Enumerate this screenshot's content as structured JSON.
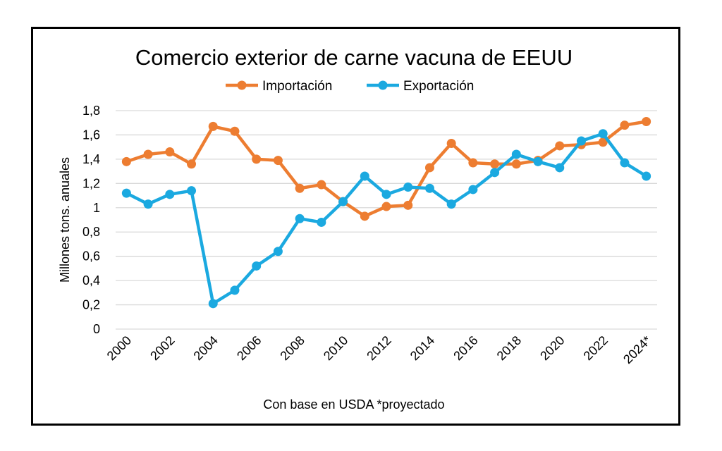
{
  "chart_data": {
    "type": "line",
    "title": "Comercio exterior de carne vacuna de EEUU",
    "xlabel": "",
    "ylabel": "Millones tons. anuales",
    "footer": "Con base en USDA *proyectado",
    "legend_position": "top-center",
    "grid": true,
    "ylim": [
      0,
      1.8
    ],
    "y_ticks": [
      "0",
      "0,2",
      "0,4",
      "0,6",
      "0,8",
      "1",
      "1,2",
      "1,4",
      "1,6",
      "1,8"
    ],
    "y_tick_values": [
      0,
      0.2,
      0.4,
      0.6,
      0.8,
      1.0,
      1.2,
      1.4,
      1.6,
      1.8
    ],
    "x": [
      "2000",
      "2001",
      "2002",
      "2003",
      "2004",
      "2005",
      "2006",
      "2007",
      "2008",
      "2009",
      "2010",
      "2011",
      "2012",
      "2013",
      "2014",
      "2015",
      "2016",
      "2017",
      "2018",
      "2019",
      "2020",
      "2021",
      "2022",
      "2023",
      "2024*"
    ],
    "x_tick_labels": [
      "2000",
      "2002",
      "2004",
      "2006",
      "2008",
      "2010",
      "2012",
      "2014",
      "2016",
      "2018",
      "2020",
      "2022",
      "2024*"
    ],
    "series": [
      {
        "name": "Importación",
        "color": "#ED7D31",
        "values": [
          1.38,
          1.44,
          1.46,
          1.36,
          1.67,
          1.63,
          1.4,
          1.39,
          1.16,
          1.19,
          1.05,
          0.93,
          1.01,
          1.02,
          1.33,
          1.53,
          1.37,
          1.36,
          1.36,
          1.39,
          1.51,
          1.52,
          1.54,
          1.68,
          1.71
        ]
      },
      {
        "name": "Exportación",
        "color": "#1BA9E0",
        "values": [
          1.12,
          1.03,
          1.11,
          1.14,
          0.21,
          0.32,
          0.52,
          0.64,
          0.91,
          0.88,
          1.05,
          1.26,
          1.11,
          1.17,
          1.16,
          1.03,
          1.15,
          1.29,
          1.44,
          1.38,
          1.33,
          1.55,
          1.61,
          1.37,
          1.26
        ]
      }
    ]
  }
}
